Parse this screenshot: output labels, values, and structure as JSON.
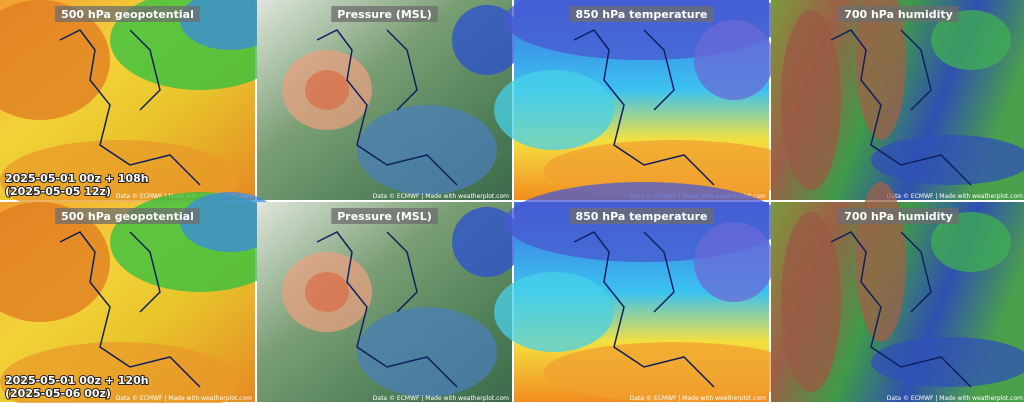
{
  "columns": [
    {
      "title": "500 hPa geopotential"
    },
    {
      "title": "Pressure (MSL)"
    },
    {
      "title": "850 hPa temperature"
    },
    {
      "title": "700 hPa humidity"
    }
  ],
  "rows": [
    {
      "run": "2025-05-01 00z + 108h",
      "valid": "(2025-05-05 12z)"
    },
    {
      "run": "2025-05-01 00z + 120h",
      "valid": "(2025-05-06 00z)"
    }
  ],
  "credit": "Data © ECMWF | Made with weatherplot.com"
}
